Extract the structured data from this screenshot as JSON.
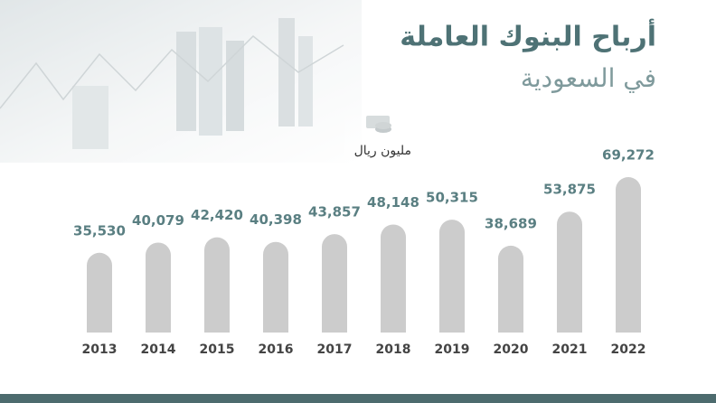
{
  "chart_data": {
    "type": "bar",
    "title": "أرباح البنوك العاملة",
    "subtitle": "في السعودية",
    "unit_label": "مليون ريال",
    "categories": [
      "2013",
      "2014",
      "2015",
      "2016",
      "2017",
      "2018",
      "2019",
      "2020",
      "2021",
      "2022"
    ],
    "values": [
      35530,
      40079,
      42420,
      40398,
      43857,
      48148,
      50315,
      38689,
      53875,
      69272
    ],
    "value_labels": [
      "35,530",
      "40,079",
      "42,420",
      "40,398",
      "43,857",
      "48,148",
      "50,315",
      "38,689",
      "53,875",
      "69,272"
    ],
    "color": "#cccccc"
  }
}
